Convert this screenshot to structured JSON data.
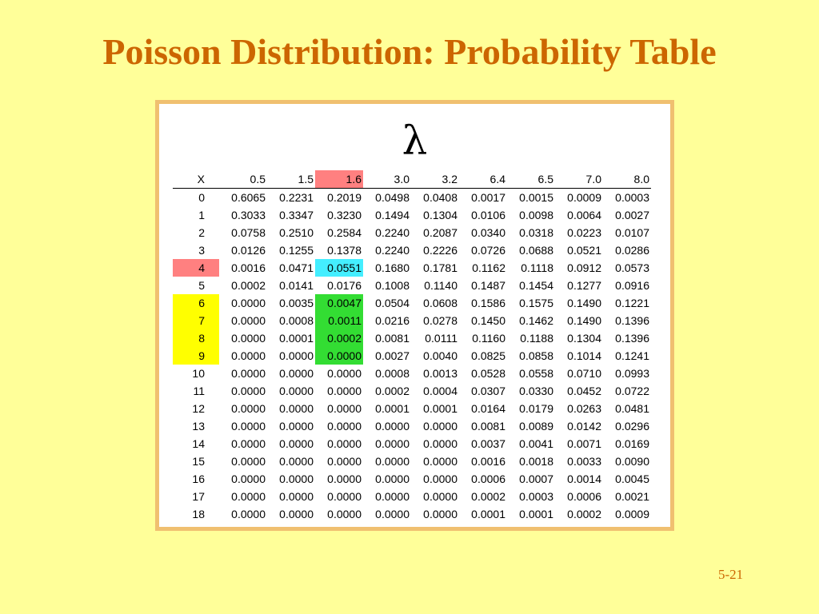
{
  "title": "Poisson Distribution: Probability Table",
  "lambda_symbol": "λ",
  "slide_number": "5-21",
  "table": {
    "header": [
      "X",
      "0.5",
      "1.5",
      "1.6",
      "3.0",
      "3.2",
      "6.4",
      "6.5",
      "7.0",
      "8.0"
    ],
    "rows": [
      [
        "0",
        "0.6065",
        "0.2231",
        "0.2019",
        "0.0498",
        "0.0408",
        "0.0017",
        "0.0015",
        "0.0009",
        "0.0003"
      ],
      [
        "1",
        "0.3033",
        "0.3347",
        "0.3230",
        "0.1494",
        "0.1304",
        "0.0106",
        "0.0098",
        "0.0064",
        "0.0027"
      ],
      [
        "2",
        "0.0758",
        "0.2510",
        "0.2584",
        "0.2240",
        "0.2087",
        "0.0340",
        "0.0318",
        "0.0223",
        "0.0107"
      ],
      [
        "3",
        "0.0126",
        "0.1255",
        "0.1378",
        "0.2240",
        "0.2226",
        "0.0726",
        "0.0688",
        "0.0521",
        "0.0286"
      ],
      [
        "4",
        "0.0016",
        "0.0471",
        "0.0551",
        "0.1680",
        "0.1781",
        "0.1162",
        "0.1118",
        "0.0912",
        "0.0573"
      ],
      [
        "5",
        "0.0002",
        "0.0141",
        "0.0176",
        "0.1008",
        "0.1140",
        "0.1487",
        "0.1454",
        "0.1277",
        "0.0916"
      ],
      [
        "6",
        "0.0000",
        "0.0035",
        "0.0047",
        "0.0504",
        "0.0608",
        "0.1586",
        "0.1575",
        "0.1490",
        "0.1221"
      ],
      [
        "7",
        "0.0000",
        "0.0008",
        "0.0011",
        "0.0216",
        "0.0278",
        "0.1450",
        "0.1462",
        "0.1490",
        "0.1396"
      ],
      [
        "8",
        "0.0000",
        "0.0001",
        "0.0002",
        "0.0081",
        "0.0111",
        "0.1160",
        "0.1188",
        "0.1304",
        "0.1396"
      ],
      [
        "9",
        "0.0000",
        "0.0000",
        "0.0000",
        "0.0027",
        "0.0040",
        "0.0825",
        "0.0858",
        "0.1014",
        "0.1241"
      ],
      [
        "10",
        "0.0000",
        "0.0000",
        "0.0000",
        "0.0008",
        "0.0013",
        "0.0528",
        "0.0558",
        "0.0710",
        "0.0993"
      ],
      [
        "11",
        "0.0000",
        "0.0000",
        "0.0000",
        "0.0002",
        "0.0004",
        "0.0307",
        "0.0330",
        "0.0452",
        "0.0722"
      ],
      [
        "12",
        "0.0000",
        "0.0000",
        "0.0000",
        "0.0001",
        "0.0001",
        "0.0164",
        "0.0179",
        "0.0263",
        "0.0481"
      ],
      [
        "13",
        "0.0000",
        "0.0000",
        "0.0000",
        "0.0000",
        "0.0000",
        "0.0081",
        "0.0089",
        "0.0142",
        "0.0296"
      ],
      [
        "14",
        "0.0000",
        "0.0000",
        "0.0000",
        "0.0000",
        "0.0000",
        "0.0037",
        "0.0041",
        "0.0071",
        "0.0169"
      ],
      [
        "15",
        "0.0000",
        "0.0000",
        "0.0000",
        "0.0000",
        "0.0000",
        "0.0016",
        "0.0018",
        "0.0033",
        "0.0090"
      ],
      [
        "16",
        "0.0000",
        "0.0000",
        "0.0000",
        "0.0000",
        "0.0000",
        "0.0006",
        "0.0007",
        "0.0014",
        "0.0045"
      ],
      [
        "17",
        "0.0000",
        "0.0000",
        "0.0000",
        "0.0000",
        "0.0000",
        "0.0002",
        "0.0003",
        "0.0006",
        "0.0021"
      ],
      [
        "18",
        "0.0000",
        "0.0000",
        "0.0000",
        "0.0000",
        "0.0000",
        "0.0001",
        "0.0001",
        "0.0002",
        "0.0009"
      ]
    ],
    "highlights": {
      "header_col_1.6": "#FF8080",
      "x_4": "#FF8080",
      "cell_4_1.6": "#44EEFF",
      "x_6_to_9": "#FFFF00",
      "cells_6_to_9_1.6": "#33DD33"
    }
  },
  "colors": {
    "background": "#FFFF99",
    "title": "#CC6600",
    "frame_border": "#F0C070"
  }
}
